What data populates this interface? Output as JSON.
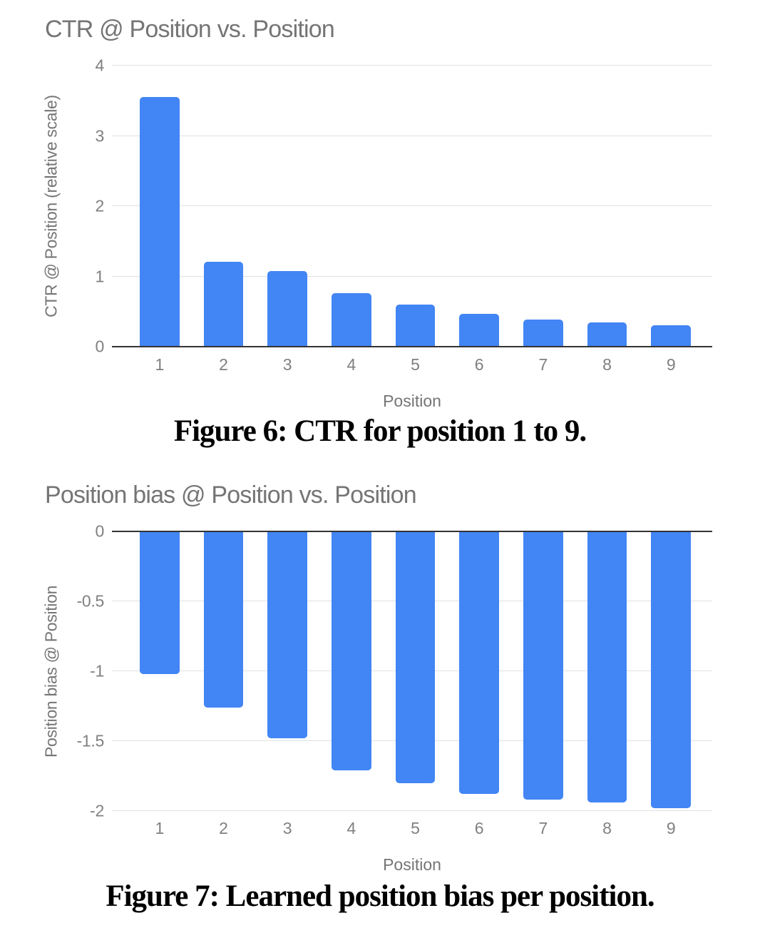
{
  "captions": {
    "figure6": "Figure 6: CTR for position 1 to 9.",
    "figure7": "Figure 7: Learned position bias per position."
  },
  "chart_data": [
    {
      "type": "bar",
      "title": "CTR @ Position vs. Position",
      "xlabel": "Position",
      "ylabel": "CTR @ Position (relative scale)",
      "categories": [
        "1",
        "2",
        "3",
        "4",
        "5",
        "6",
        "7",
        "8",
        "9"
      ],
      "values": [
        3.55,
        1.21,
        1.08,
        0.76,
        0.6,
        0.47,
        0.39,
        0.35,
        0.3
      ],
      "ylim": [
        0,
        4
      ],
      "yticks": [
        {
          "v": 0,
          "label": "0"
        },
        {
          "v": 1,
          "label": "1"
        },
        {
          "v": 2,
          "label": "2"
        },
        {
          "v": 3,
          "label": "3"
        },
        {
          "v": 4,
          "label": "4"
        }
      ],
      "bar_color": "#4285f4",
      "grid_color": "#e0e0e0",
      "axis_color": "#333333",
      "grid": true,
      "legend": "none"
    },
    {
      "type": "bar",
      "title": "Position bias @ Position vs. Position",
      "xlabel": "Position",
      "ylabel": "Position bias @ Position",
      "categories": [
        "1",
        "2",
        "3",
        "4",
        "5",
        "6",
        "7",
        "8",
        "9"
      ],
      "values": [
        -1.02,
        -1.26,
        -1.48,
        -1.71,
        -1.8,
        -1.88,
        -1.92,
        -1.94,
        -1.98
      ],
      "ylim": [
        -2,
        0
      ],
      "yticks": [
        {
          "v": 0,
          "label": "0"
        },
        {
          "v": -0.5,
          "label": "-0.5"
        },
        {
          "v": -1,
          "label": "-1"
        },
        {
          "v": -1.5,
          "label": "-1.5"
        },
        {
          "v": -2,
          "label": "-2"
        }
      ],
      "bar_color": "#4285f4",
      "grid_color": "#e0e0e0",
      "axis_color": "#333333",
      "grid": true,
      "legend": "none"
    }
  ]
}
